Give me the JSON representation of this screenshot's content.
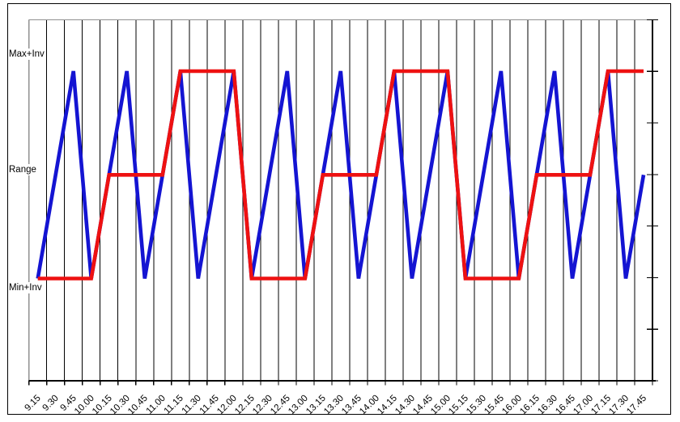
{
  "chart_data": {
    "type": "line",
    "title": "",
    "xlabel": "",
    "ylabel": "",
    "x_axis": {
      "categories": [
        "9.15",
        "9.30",
        "9.45",
        "10.00",
        "10.15",
        "10.30",
        "10.45",
        "11.00",
        "11.15",
        "11.30",
        "11.45",
        "12.00",
        "12.15",
        "12.30",
        "12.45",
        "13.00",
        "13.15",
        "13.30",
        "13.45",
        "14.00",
        "14.15",
        "14.30",
        "14.45",
        "15.00",
        "15.15",
        "15.30",
        "15.45",
        "16.00",
        "16.15",
        "16.30",
        "16.45",
        "17.00",
        "17.15",
        "17.30",
        "17.45"
      ],
      "label_rotation_deg": -45
    },
    "y_axis": {
      "tick_labels": [
        "Max+Inv",
        "Range",
        "Min+Inv"
      ],
      "levels_low_to_high": [
        "Min+Inv",
        "Range",
        "Max+Inv"
      ],
      "right_axis_tick_count": 8
    },
    "series": [
      {
        "name": "blue",
        "color": "#1414d2",
        "values": [
          "Min+Inv",
          "Range",
          "Max+Inv",
          "Min+Inv",
          "Range",
          "Max+Inv",
          "Min+Inv",
          "Range",
          "Max+Inv",
          "Min+Inv",
          "Range",
          "Max+Inv",
          "Min+Inv",
          "Range",
          "Max+Inv",
          "Min+Inv",
          "Range",
          "Max+Inv",
          "Min+Inv",
          "Range",
          "Max+Inv",
          "Min+Inv",
          "Range",
          "Max+Inv",
          "Min+Inv",
          "Range",
          "Max+Inv",
          "Min+Inv",
          "Range",
          "Max+Inv",
          "Min+Inv",
          "Range",
          "Max+Inv",
          "Min+Inv",
          "Range"
        ]
      },
      {
        "name": "red",
        "color": "#ee1111",
        "values": [
          "Min+Inv",
          "Min+Inv",
          "Min+Inv",
          "Min+Inv",
          "Range",
          "Range",
          "Range",
          "Range",
          "Max+Inv",
          "Max+Inv",
          "Max+Inv",
          "Max+Inv",
          "Min+Inv",
          "Min+Inv",
          "Min+Inv",
          "Min+Inv",
          "Range",
          "Range",
          "Range",
          "Range",
          "Max+Inv",
          "Max+Inv",
          "Max+Inv",
          "Max+Inv",
          "Min+Inv",
          "Min+Inv",
          "Min+Inv",
          "Min+Inv",
          "Range",
          "Range",
          "Range",
          "Range",
          "Max+Inv",
          "Max+Inv",
          "Max+Inv"
        ]
      }
    ],
    "layout_hints": {
      "grid": "vertical-only",
      "legend": "none",
      "grid_color": "#000000",
      "plot_border_color": "#909090",
      "axis_color": "#000000"
    }
  }
}
